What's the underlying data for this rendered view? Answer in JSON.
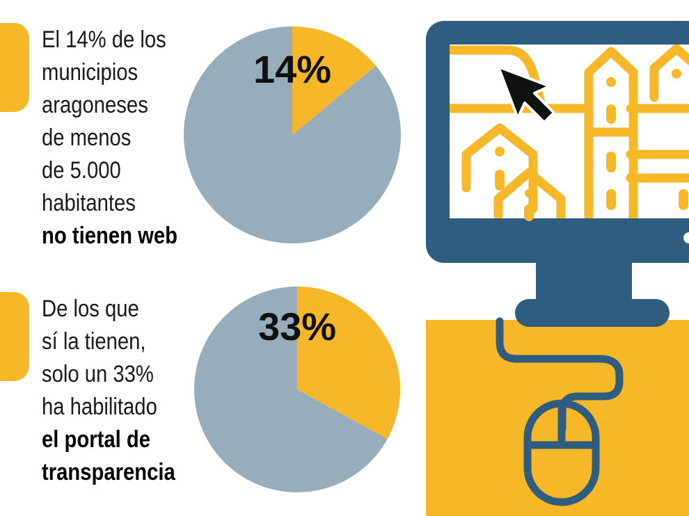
{
  "colors": {
    "accent": "#f6b728",
    "pie_rest": "#98adbb",
    "monitor": "#2f5d80",
    "text": "#1a1a1a"
  },
  "stat1": {
    "lines": [
      "El 14% de los",
      "municipios",
      "aragoneses",
      "de menos",
      "de 5.000",
      "habitantes"
    ],
    "bold_lines": [
      "no tienen web"
    ]
  },
  "stat2": {
    "lines": [
      "De los que",
      "sí la tienen,",
      "solo un 33%",
      "ha habilitado"
    ],
    "bold_lines": [
      "el portal de",
      "transparencia"
    ]
  },
  "chart_data": [
    {
      "type": "pie",
      "label": "14%",
      "slices": [
        {
          "value": 14,
          "color": "#f6b728"
        },
        {
          "value": 86,
          "color": "#98adbb"
        }
      ]
    },
    {
      "type": "pie",
      "label": "33%",
      "slices": [
        {
          "value": 33,
          "color": "#f6b728"
        },
        {
          "value": 67,
          "color": "#98adbb"
        }
      ]
    }
  ],
  "icons": [
    "computer-monitor-icon",
    "mouse-pointer-icon",
    "town-buildings-icon",
    "computer-mouse-icon"
  ]
}
